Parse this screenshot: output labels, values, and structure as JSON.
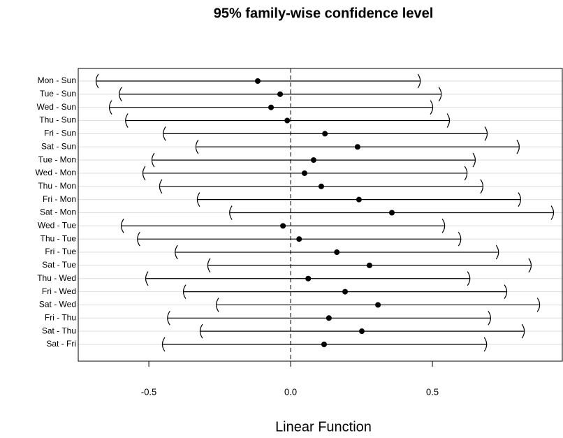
{
  "chart_data": {
    "type": "interval",
    "title": "95% family-wise confidence level",
    "x_label": "Linear Function",
    "categories": [
      "Mon - Sun",
      "Tue - Sun",
      "Wed - Sun",
      "Thu - Sun",
      "Fri - Sun",
      "Sat - Sun",
      "Tue - Mon",
      "Wed - Mon",
      "Thu - Mon",
      "Fri - Mon",
      "Sat - Mon",
      "Wed - Tue",
      "Thu - Tue",
      "Fri - Tue",
      "Sat - Tue",
      "Thu - Wed",
      "Fri - Wed",
      "Sat - Wed",
      "Fri - Thu",
      "Sat - Thu",
      "Sat - Fri"
    ],
    "values": [
      -0.116,
      -0.037,
      -0.069,
      -0.012,
      0.121,
      0.236,
      0.081,
      0.049,
      0.108,
      0.241,
      0.357,
      -0.027,
      0.03,
      0.163,
      0.278,
      0.062,
      0.192,
      0.308,
      0.135,
      0.251,
      0.118
    ],
    "lower": [
      -0.685,
      -0.603,
      -0.638,
      -0.581,
      -0.448,
      -0.333,
      -0.488,
      -0.52,
      -0.461,
      -0.328,
      -0.214,
      -0.596,
      -0.539,
      -0.406,
      -0.291,
      -0.51,
      -0.377,
      -0.261,
      -0.433,
      -0.318,
      -0.451
    ],
    "upper": [
      0.456,
      0.53,
      0.5,
      0.559,
      0.692,
      0.805,
      0.65,
      0.621,
      0.677,
      0.81,
      0.926,
      0.542,
      0.599,
      0.732,
      0.847,
      0.631,
      0.761,
      0.877,
      0.704,
      0.823,
      0.69
    ],
    "color": "#000000",
    "xlim": [
      -0.749,
      0.958
    ],
    "xticks": [
      -0.5,
      {
        "value": 0,
        "label": "0.0"
      },
      0.5
    ],
    "reference_line": 0,
    "grid": true
  }
}
